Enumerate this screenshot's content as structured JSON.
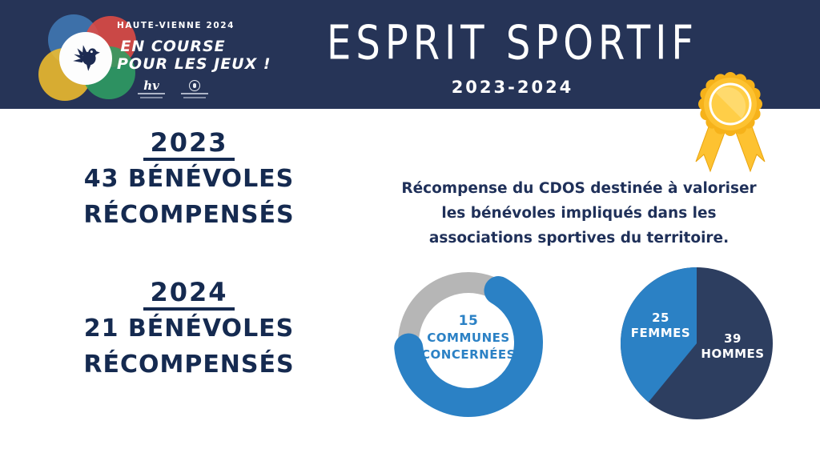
{
  "header": {
    "club_name": "HAUTE-VIENNE 2024",
    "tagline_line1": "EN COURSE",
    "tagline_line2": "POUR LES JEUX !",
    "title": "ESPRIT SPORTIF",
    "subtitle": "2023-2024"
  },
  "stats": {
    "y2023": {
      "year": "2023",
      "count_line": "43 BÉNÉVOLES",
      "label_line": "RÉCOMPENSÉS"
    },
    "y2024": {
      "year": "2024",
      "count_line": "21 BÉNÉVOLES",
      "label_line": "RÉCOMPENSÉS"
    }
  },
  "description": {
    "line1": "Récompense du CDOS destinée à valoriser",
    "line2": "les bénévoles impliqués dans les",
    "line3": "associations sportives du territoire."
  },
  "colors": {
    "header_bg": "#263457",
    "text_navy": "#152a50",
    "chart_blue": "#2b81c5",
    "chart_gray": "#b6b6b6",
    "pie_navy": "#2d3e60",
    "gold": "#fdc231"
  },
  "chart_data": [
    {
      "type": "donut",
      "value": 15,
      "center_lines": [
        "15",
        "COMMUNES",
        "CONCERNÉES"
      ],
      "ring": {
        "start_deg": 30,
        "sweep_deg": 235,
        "arc_color": "#2b81c5",
        "rest_color": "#b6b6b6"
      }
    },
    {
      "type": "pie",
      "slices": [
        {
          "label_lines": [
            "39",
            "HOMMES"
          ],
          "value": 39,
          "color": "#2d3e60"
        },
        {
          "label_lines": [
            "25",
            "FEMMES"
          ],
          "value": 25,
          "color": "#2b81c5"
        }
      ]
    }
  ]
}
